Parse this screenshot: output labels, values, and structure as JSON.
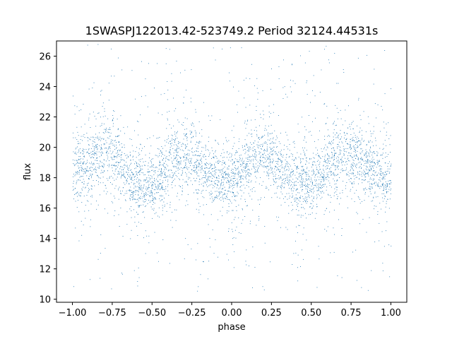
{
  "chart_data": {
    "type": "scatter",
    "title": "1SWASPJ122013.42-523749.2 Period 32124.44531s",
    "xlabel": "phase",
    "ylabel": "flux",
    "xlim": [
      -1.1,
      1.1
    ],
    "ylim": [
      9.8,
      27.0
    ],
    "xticks": [
      -1.0,
      -0.75,
      -0.5,
      -0.25,
      0.0,
      0.25,
      0.5,
      0.75,
      1.0
    ],
    "xtick_labels": [
      "−1.00",
      "−0.75",
      "−0.50",
      "−0.25",
      "0.00",
      "0.25",
      "0.50",
      "0.75",
      "1.00"
    ],
    "yticks": [
      10,
      12,
      14,
      16,
      18,
      20,
      22,
      24,
      26
    ],
    "ytick_labels": [
      "10",
      "12",
      "14",
      "16",
      "18",
      "20",
      "22",
      "24",
      "26"
    ],
    "grid": false,
    "legend": "none",
    "marker_color": "#1f77b4",
    "series": [
      {
        "phase": [
          -1.0,
          -0.95,
          -0.9,
          -0.85,
          -0.8,
          -0.75,
          -0.7,
          -0.65,
          -0.6,
          -0.55,
          -0.5,
          -0.45,
          -0.4,
          -0.35,
          -0.3,
          -0.25,
          -0.2,
          -0.15,
          -0.1,
          -0.05,
          0.0,
          0.05,
          0.1,
          0.15,
          0.2,
          0.25,
          0.3,
          0.35,
          0.4,
          0.45,
          0.5,
          0.55,
          0.6,
          0.65,
          0.7,
          0.75,
          0.8,
          0.85,
          0.9,
          0.95,
          1.0
        ],
        "flux_median": [
          18.1,
          18.6,
          19.1,
          19.5,
          19.7,
          19.4,
          18.8,
          18.1,
          17.6,
          17.5,
          17.7,
          18.3,
          18.9,
          19.4,
          19.6,
          19.4,
          18.9,
          18.3,
          17.9,
          17.9,
          18.0,
          18.4,
          18.9,
          19.3,
          19.5,
          19.3,
          18.8,
          18.2,
          17.8,
          17.6,
          17.6,
          18.1,
          18.7,
          19.2,
          19.5,
          19.6,
          19.3,
          18.8,
          18.3,
          18.0,
          18.0
        ],
        "flux_spread": [
          1.6,
          1.6,
          1.6,
          1.7,
          1.8,
          1.7,
          1.6,
          1.6,
          1.6,
          1.6,
          1.6,
          1.6,
          1.7,
          1.8,
          1.8,
          1.7,
          1.6,
          1.6,
          1.6,
          1.6,
          1.6,
          1.6,
          1.6,
          1.7,
          1.8,
          1.7,
          1.6,
          1.6,
          1.6,
          1.6,
          1.6,
          1.6,
          1.7,
          1.8,
          1.9,
          1.8,
          1.7,
          1.6,
          1.6,
          1.6,
          1.6
        ],
        "flux_range": [
          10.5,
          26.8
        ]
      }
    ]
  }
}
